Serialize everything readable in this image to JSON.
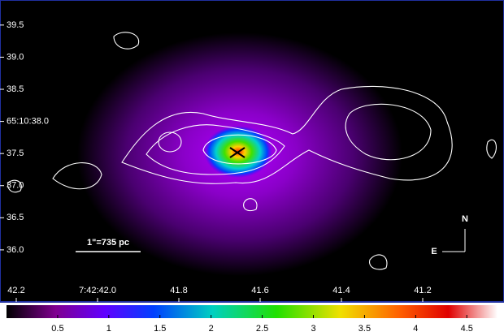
{
  "chart_data": {
    "type": "image",
    "xlim": [
      42.24,
      41.0
    ],
    "xticks": [
      42.2,
      {
        "value": 42,
        "label": "7:42:42.0"
      },
      41.8,
      41.6,
      41.4,
      41.2
    ],
    "ylim": [
      35.19,
      39.89
    ],
    "yticks": [
      39.5,
      {
        "value": 39,
        "label": "39.0"
      },
      38.5,
      {
        "value": 38,
        "label": "65:10:38.0"
      },
      37.5,
      {
        "value": 37,
        "label": "37.0"
      },
      36.5,
      {
        "value": 36,
        "label": "36.0"
      }
    ],
    "colorbar": {
      "lim": [
        0,
        4.8
      ],
      "ticks": [
        0.5,
        1,
        1.5,
        2,
        2.5,
        3,
        3.5,
        4,
        4.5
      ]
    },
    "scale_bar": "1\"=735 pc",
    "compass": {
      "north": "N",
      "east": "E"
    }
  }
}
